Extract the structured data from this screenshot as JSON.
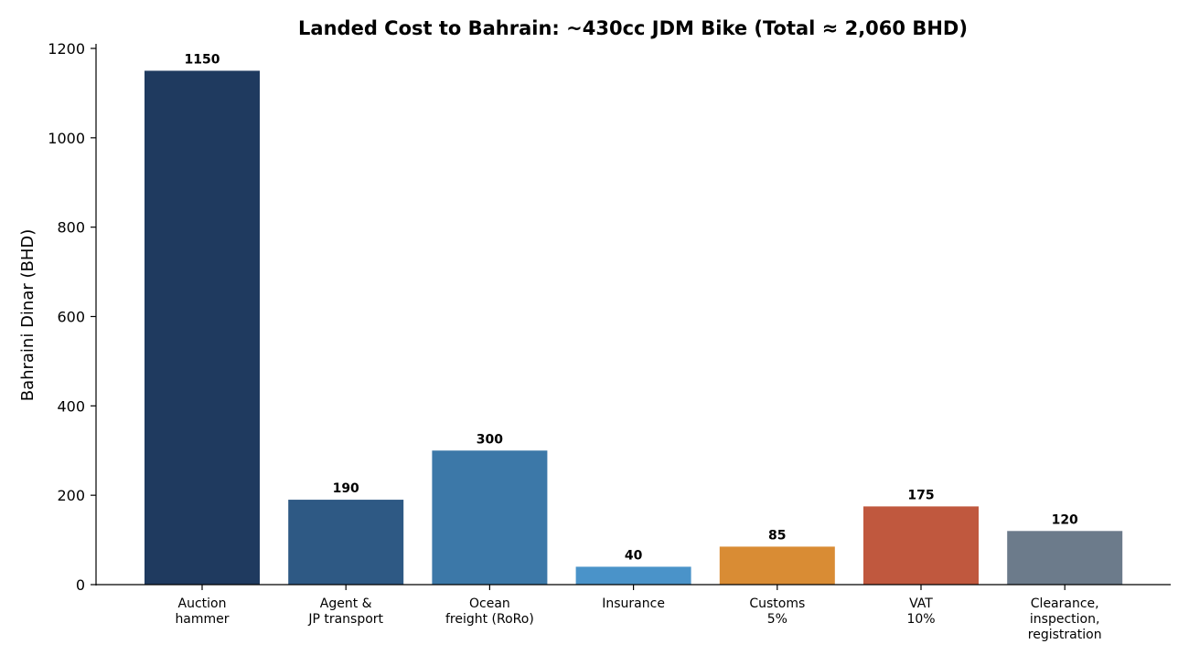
{
  "chart_data": {
    "type": "bar",
    "title": "Landed Cost to Bahrain: ~430cc JDM Bike (Total ≈ 2,060 BHD)",
    "xlabel": "",
    "ylabel": "Bahraini Dinar (BHD)",
    "ylim": [
      0,
      1200
    ],
    "yticks": [
      0,
      200,
      400,
      600,
      800,
      1000,
      1200
    ],
    "grid": false,
    "categories": [
      [
        "Auction",
        "hammer"
      ],
      [
        "Agent &",
        "JP transport"
      ],
      [
        "Ocean",
        "freight (RoRo)"
      ],
      [
        "Insurance"
      ],
      [
        "Customs",
        "5%"
      ],
      [
        "VAT",
        "10%"
      ],
      [
        "Clearance,",
        "inspection,",
        "registration"
      ]
    ],
    "values": [
      1150,
      190,
      300,
      40,
      85,
      175,
      120
    ],
    "colors": [
      "#1f3a5f",
      "#2e5984",
      "#3c78a8",
      "#4a93c9",
      "#d98c34",
      "#c0583e",
      "#6c7b8b"
    ]
  }
}
